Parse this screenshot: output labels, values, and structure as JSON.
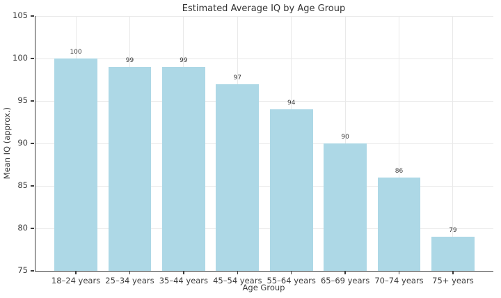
{
  "chart_data": {
    "type": "bar",
    "title": "Estimated Average IQ by Age Group",
    "xlabel": "Age Group",
    "ylabel": "Mean IQ (approx.)",
    "categories": [
      "18–24 years",
      "25–34 years",
      "35–44 years",
      "45–54 years",
      "55–64 years",
      "65–69 years",
      "70–74 years",
      "75+ years"
    ],
    "values": [
      100,
      99,
      99,
      97,
      94,
      90,
      86,
      79
    ],
    "data_labels": [
      100,
      99,
      99,
      97,
      94,
      90,
      86,
      79
    ],
    "ylim": [
      75,
      105
    ],
    "yticks": [
      75,
      80,
      85,
      90,
      95,
      100,
      105
    ],
    "grid": "on",
    "legend": "none",
    "colors": {
      "bar_fill": "#ADD8E6",
      "grid": "#e9e9e9",
      "axis": "#3b3b3b",
      "text": "#3a3a3a",
      "background": "#ffffff"
    }
  }
}
